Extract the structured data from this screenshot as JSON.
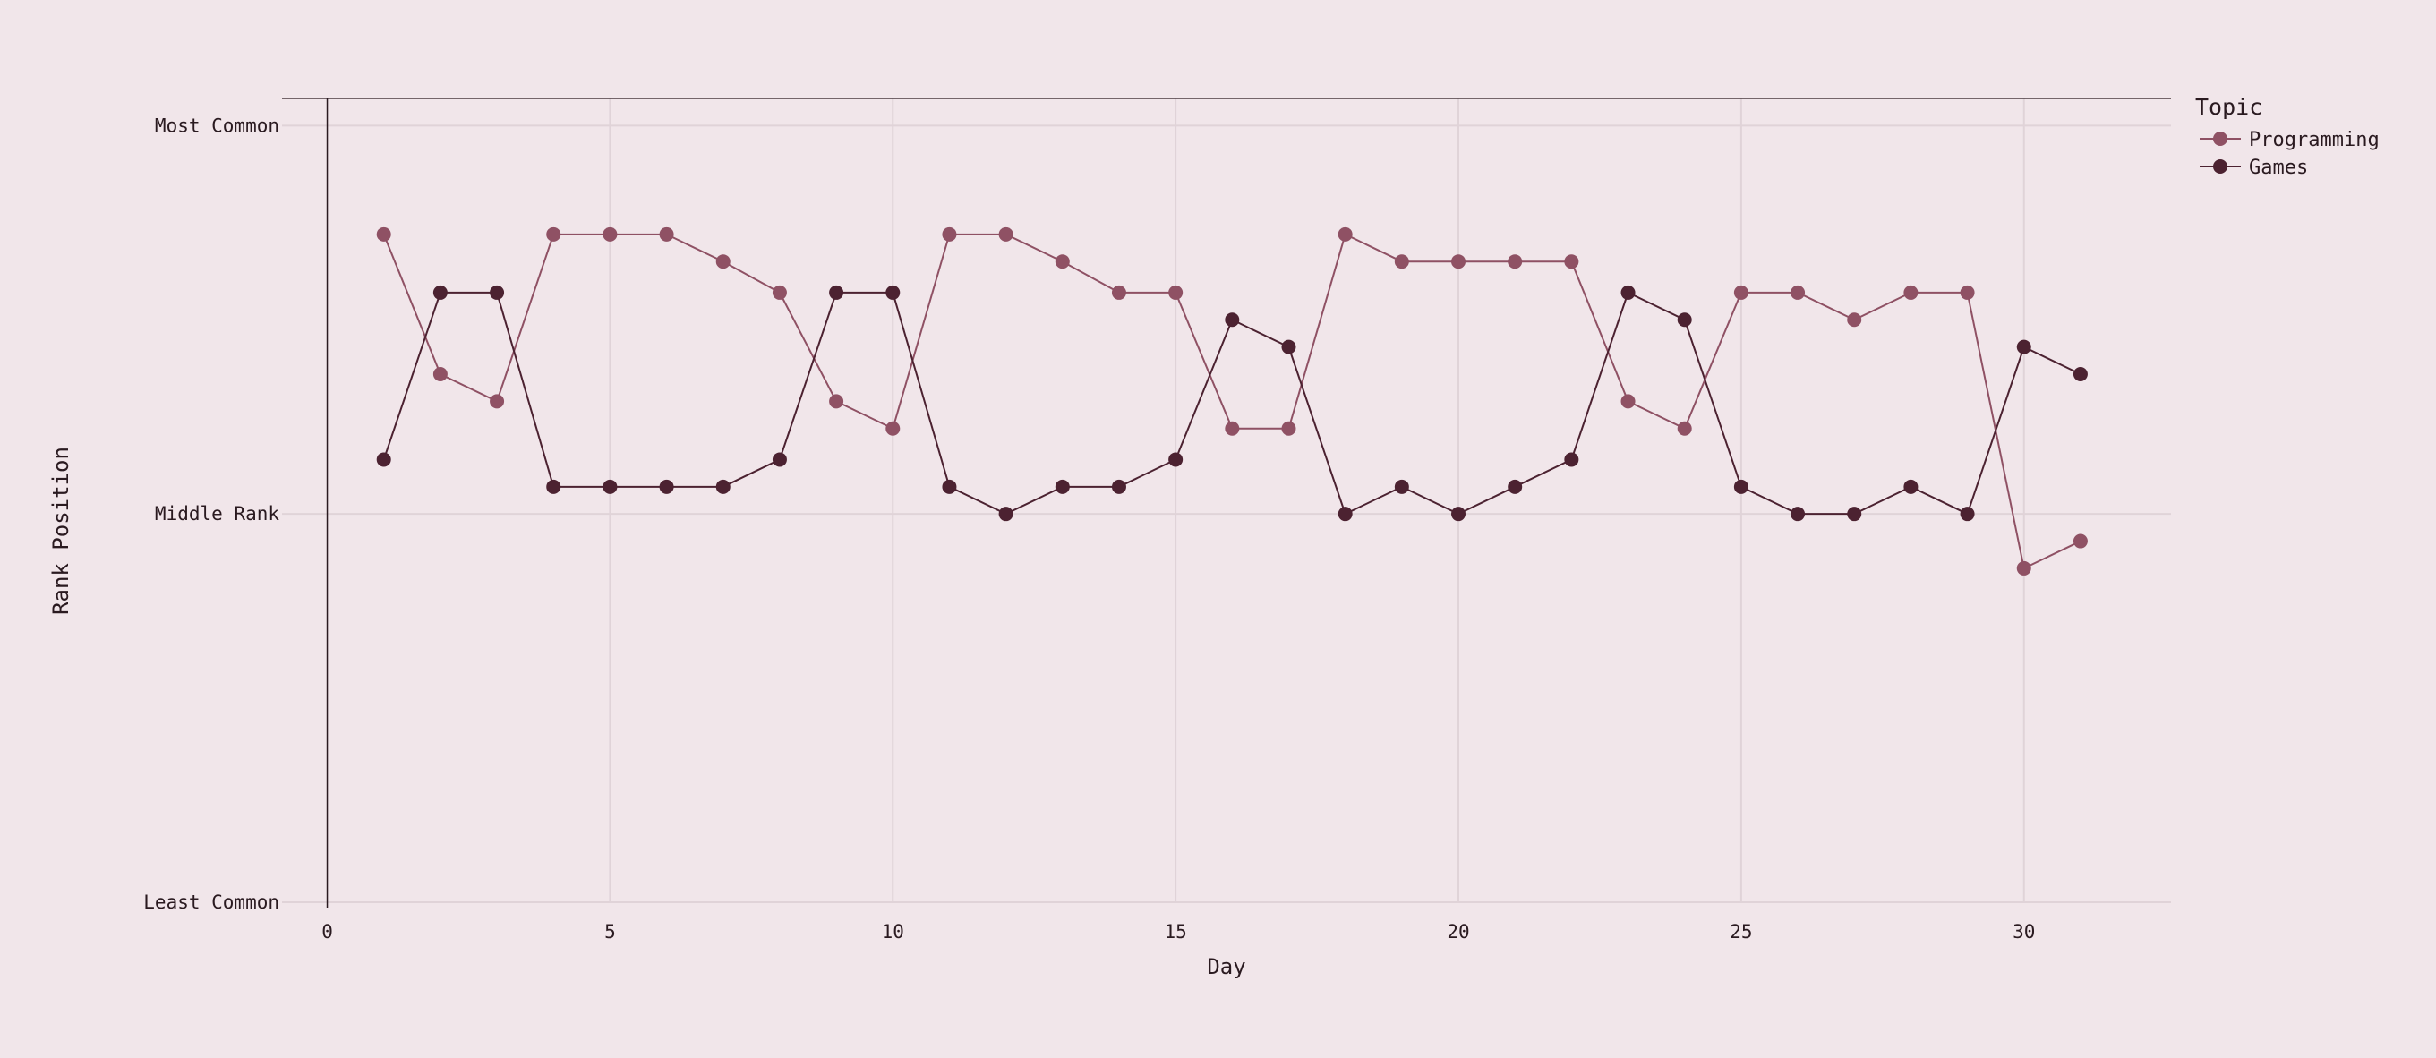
{
  "chart_data": {
    "type": "line",
    "title": "",
    "xlabel": "Day",
    "ylabel": "Rank Position",
    "xlim": [
      -0.8,
      32.6
    ],
    "ylim": [
      0,
      2.07
    ],
    "x_ticks": [
      0,
      5,
      10,
      15,
      20,
      25,
      30
    ],
    "y_ticks": [
      {
        "value": 0,
        "label": "Least Common"
      },
      {
        "value": 1,
        "label": "Middle Rank"
      },
      {
        "value": 2,
        "label": "Most Common"
      }
    ],
    "grid": true,
    "legend": {
      "title": "Topic",
      "position": "top-right"
    },
    "x": [
      1,
      2,
      3,
      4,
      5,
      6,
      7,
      8,
      9,
      10,
      11,
      12,
      13,
      14,
      15,
      16,
      17,
      18,
      19,
      20,
      21,
      22,
      23,
      24,
      25,
      26,
      27,
      28,
      29,
      30,
      31
    ],
    "series": [
      {
        "name": "Programming",
        "color": "#8f5164",
        "values": [
          1.72,
          1.36,
          1.29,
          1.72,
          1.72,
          1.72,
          1.65,
          1.57,
          1.29,
          1.22,
          1.72,
          1.72,
          1.65,
          1.57,
          1.57,
          1.22,
          1.22,
          1.72,
          1.65,
          1.65,
          1.65,
          1.65,
          1.29,
          1.22,
          1.57,
          1.57,
          1.5,
          1.57,
          1.57,
          0.86,
          0.93
        ]
      },
      {
        "name": "Games",
        "color": "#4c2231",
        "values": [
          1.14,
          1.57,
          1.57,
          1.07,
          1.07,
          1.07,
          1.07,
          1.14,
          1.57,
          1.57,
          1.07,
          1.0,
          1.07,
          1.07,
          1.14,
          1.5,
          1.43,
          1.0,
          1.07,
          1.0,
          1.07,
          1.14,
          1.57,
          1.5,
          1.07,
          1.0,
          1.0,
          1.07,
          1.0,
          1.43,
          1.36
        ]
      }
    ]
  }
}
